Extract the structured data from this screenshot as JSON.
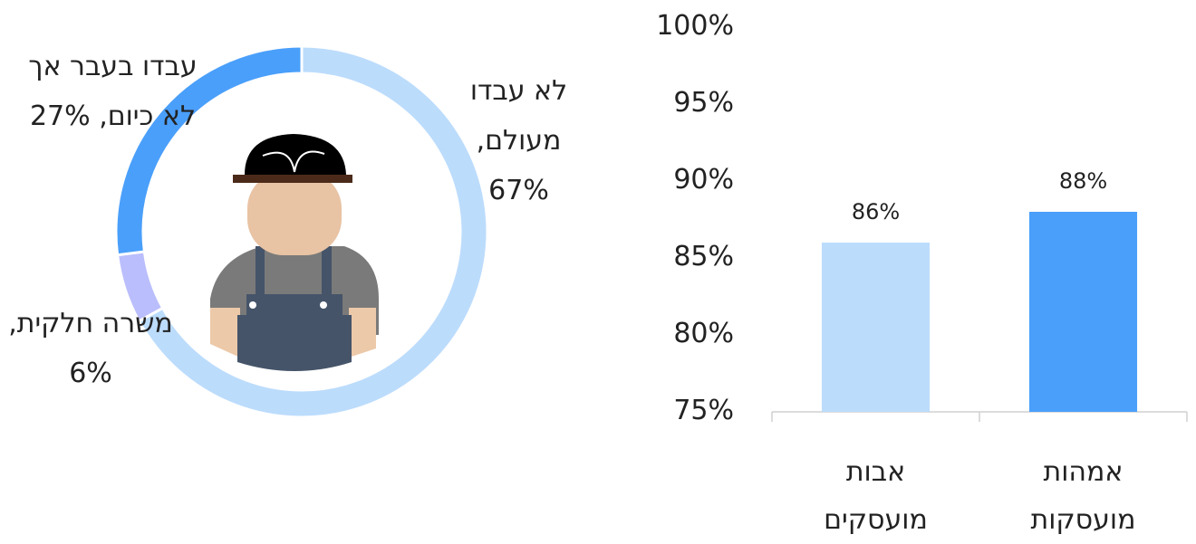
{
  "chart_data": [
    {
      "type": "donut",
      "categories": [
        "לא עבדו מעולם,",
        "משרה חלקית,",
        "עבדו בעבר אך לא כיום,"
      ],
      "values": [
        67,
        6,
        27
      ],
      "value_labels": [
        "67%",
        "6%",
        "27%"
      ],
      "colors": [
        "#bcdcfc",
        "#babefc",
        "#4a9ffa"
      ]
    },
    {
      "type": "bar",
      "categories": [
        "אבות מועסקים",
        "אמהות מועסקות"
      ],
      "values": [
        86,
        88
      ],
      "value_labels": [
        "86%",
        "88%"
      ],
      "colors": [
        "#bcdcfc",
        "#4a9ffa"
      ],
      "ylim": [
        75,
        100
      ],
      "yticks": [
        {
          "value": 75,
          "label": "75%"
        },
        {
          "value": 80,
          "label": "80%"
        },
        {
          "value": 85,
          "label": "85%"
        },
        {
          "value": 90,
          "label": "90%"
        },
        {
          "value": 95,
          "label": "95%"
        },
        {
          "value": 100,
          "label": "100%"
        }
      ],
      "grid": false
    }
  ]
}
